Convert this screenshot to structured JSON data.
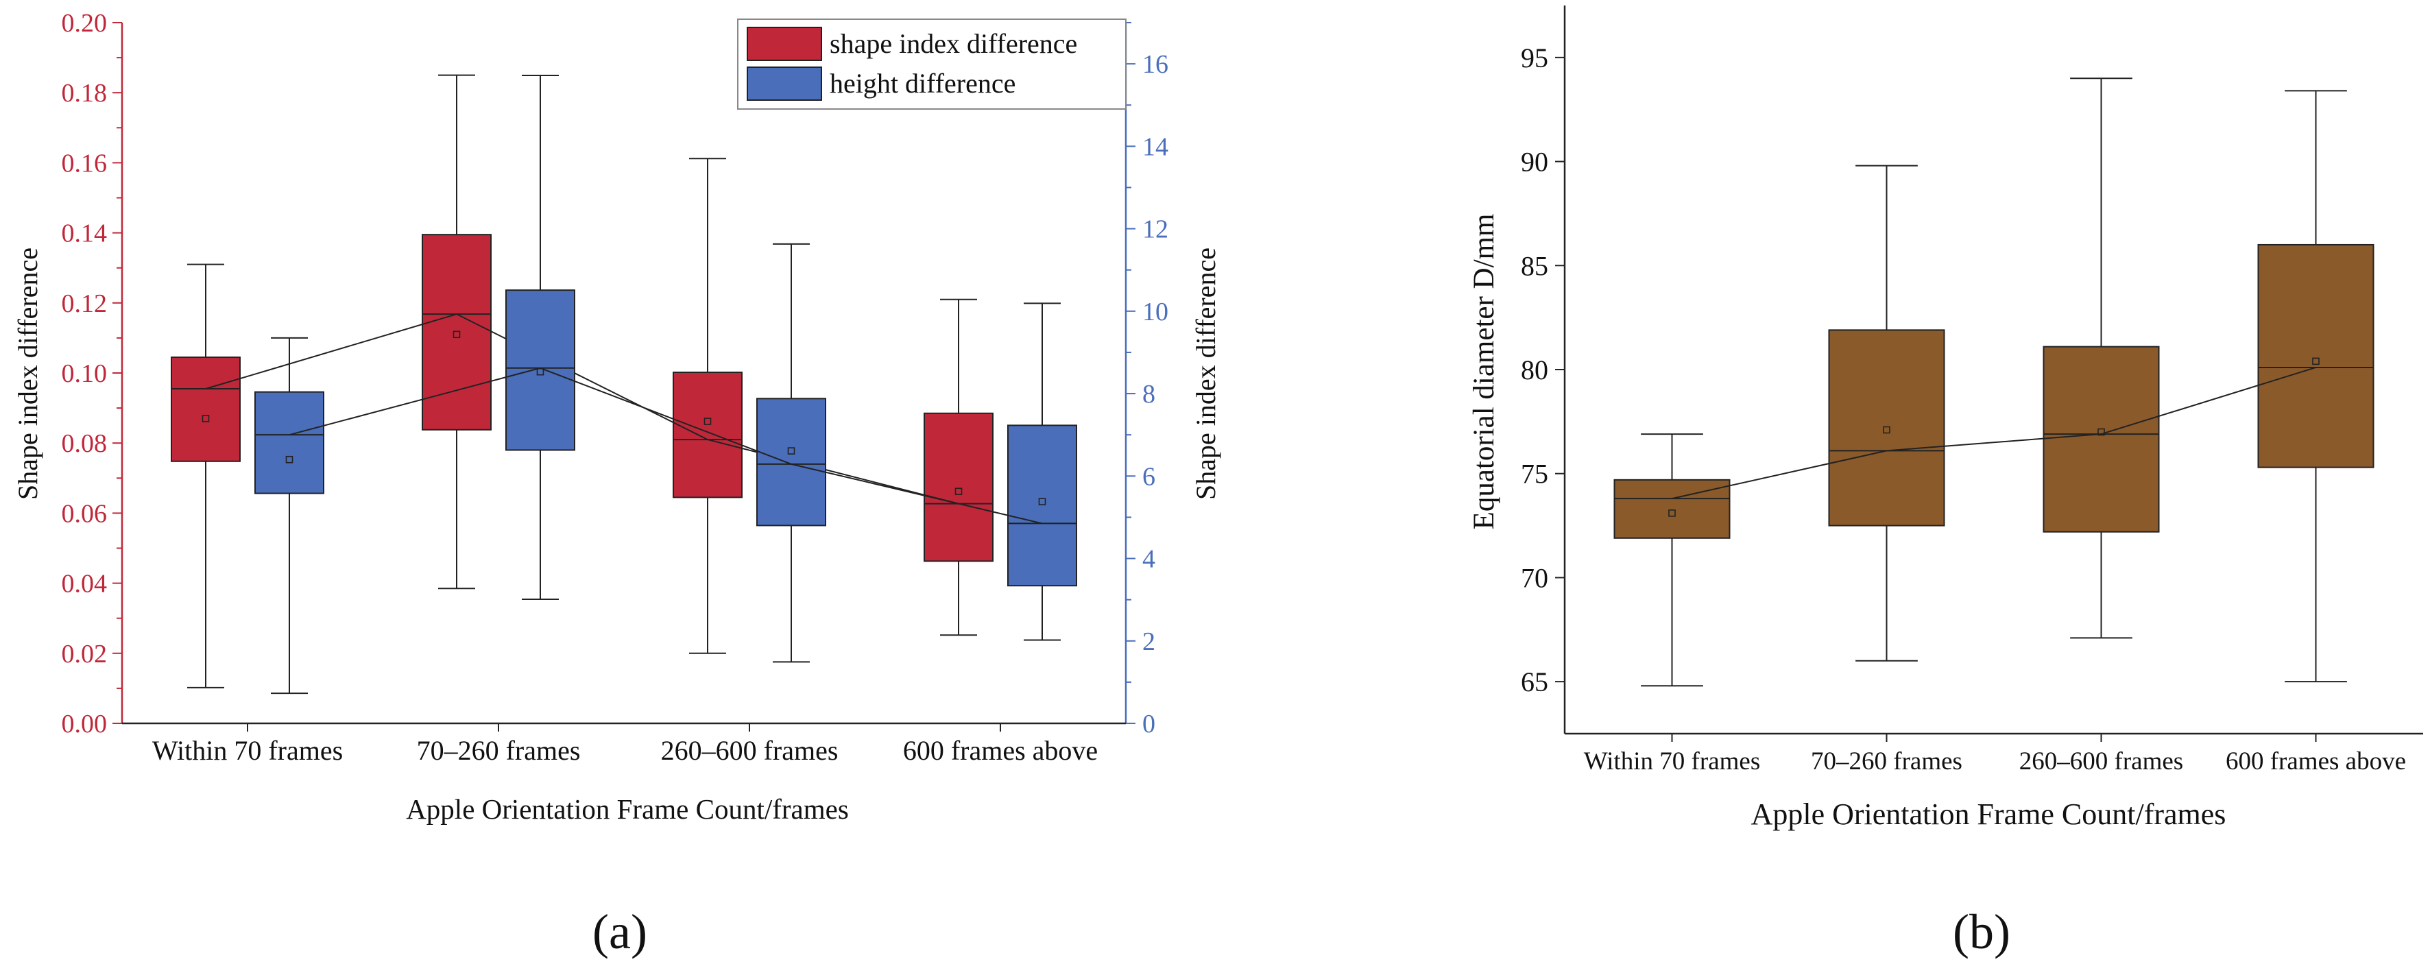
{
  "chart_data": [
    {
      "type": "box",
      "panel_label": "(a)",
      "xlabel": "Apple Orientation Frame Count/frames",
      "ylabel": "Shape index difference",
      "ylabel_right": "Shape index difference",
      "categories": [
        "Within 70 frames",
        "70–260 frames",
        "260–600 frames",
        "600 frames above"
      ],
      "ylim": [
        0,
        0.2
      ],
      "yticks": [
        "0.00",
        "0.02",
        "0.04",
        "0.06",
        "0.08",
        "0.10",
        "0.12",
        "0.14",
        "0.16",
        "0.18",
        "0.20"
      ],
      "ylim_right": [
        0,
        17
      ],
      "yticks_right": [
        "0",
        "2",
        "4",
        "6",
        "8",
        "10",
        "12",
        "14",
        "16"
      ],
      "legend": [
        "shape index difference",
        "height difference"
      ],
      "series": [
        {
          "name": "shape index difference",
          "color": "#c0283a",
          "axis": "left",
          "boxes": [
            {
              "min": 0.0102,
              "q1": 0.0748,
              "median": 0.0955,
              "q3": 0.1045,
              "max": 0.131,
              "mean": 0.087
            },
            {
              "min": 0.0385,
              "q1": 0.0838,
              "median": 0.1168,
              "q3": 0.1395,
              "max": 0.185,
              "mean": 0.111
            },
            {
              "min": 0.02,
              "q1": 0.0645,
              "median": 0.081,
              "q3": 0.1002,
              "max": 0.1612,
              "mean": 0.0862
            },
            {
              "min": 0.0252,
              "q1": 0.0463,
              "median": 0.0627,
              "q3": 0.0885,
              "max": 0.121,
              "mean": 0.0662
            }
          ]
        },
        {
          "name": "height difference",
          "color": "#4a6eba",
          "axis": "right",
          "boxes": [
            {
              "min": 0.73,
              "q1": 5.58,
              "median": 7.0,
              "q3": 8.04,
              "max": 9.35,
              "mean": 6.4
            },
            {
              "min": 3.01,
              "q1": 6.63,
              "median": 8.62,
              "q3": 10.51,
              "max": 15.72,
              "mean": 8.53
            },
            {
              "min": 1.49,
              "q1": 4.8,
              "median": 6.29,
              "q3": 7.88,
              "max": 11.63,
              "mean": 6.61
            },
            {
              "min": 2.02,
              "q1": 3.34,
              "median": 4.85,
              "q3": 7.23,
              "max": 10.19,
              "mean": 5.38
            }
          ]
        }
      ]
    },
    {
      "type": "box",
      "panel_label": "(b)",
      "xlabel": "Apple Orientation Frame Count/frames",
      "ylabel": "Equatorial diameter D/mm",
      "categories": [
        "Within 70 frames",
        "70–260 frames",
        "260–600 frames",
        "600 frames above"
      ],
      "ylim": [
        62.5,
        97.5
      ],
      "yticks": [
        "65",
        "70",
        "75",
        "80",
        "85",
        "90",
        "95"
      ],
      "series": [
        {
          "name": "Equatorial diameter",
          "color": "#8b5a2b",
          "boxes": [
            {
              "min": 64.8,
              "q1": 71.9,
              "median": 73.8,
              "q3": 74.7,
              "max": 76.9,
              "mean": 73.1
            },
            {
              "min": 66.0,
              "q1": 72.5,
              "median": 76.1,
              "q3": 81.9,
              "max": 89.8,
              "mean": 77.1
            },
            {
              "min": 67.1,
              "q1": 72.2,
              "median": 76.9,
              "q3": 81.1,
              "max": 94.0,
              "mean": 77.0
            },
            {
              "min": 65.0,
              "q1": 75.3,
              "median": 80.1,
              "q3": 86.0,
              "max": 93.4,
              "mean": 80.4
            }
          ]
        }
      ]
    }
  ]
}
